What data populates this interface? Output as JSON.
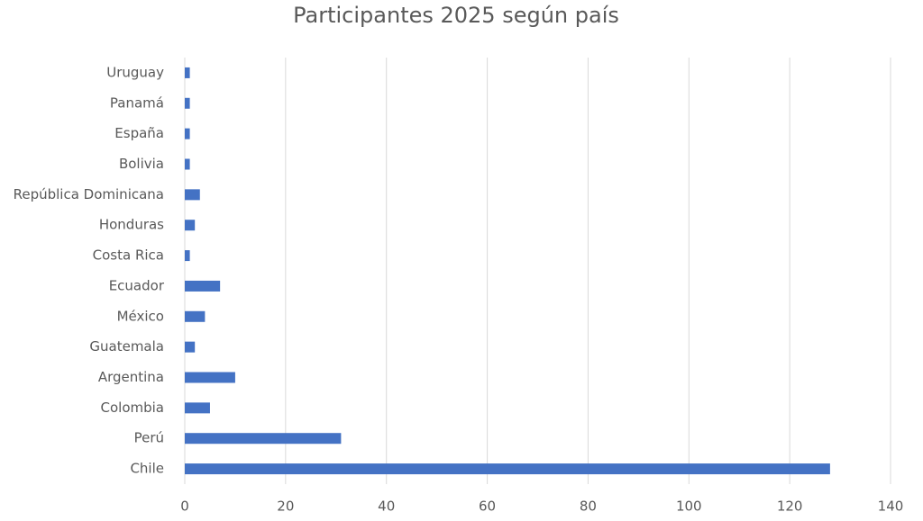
{
  "chart_data": {
    "type": "bar",
    "orientation": "horizontal",
    "title": "Participantes 2025 según país",
    "categories": [
      "Chile",
      "Perú",
      "Colombia",
      "Argentina",
      "Guatemala",
      "México",
      "Ecuador",
      "Costa Rica",
      "Honduras",
      "República Dominicana",
      "Bolivia",
      "España",
      "Panamá",
      "Uruguay"
    ],
    "values": [
      128,
      31,
      5,
      10,
      2,
      4,
      7,
      1,
      2,
      3,
      1,
      1,
      1,
      1
    ],
    "color": "#4472c4",
    "xlim": [
      0,
      140
    ],
    "xticks": [
      0,
      20,
      40,
      60,
      80,
      100,
      120,
      140
    ],
    "grid": true
  }
}
